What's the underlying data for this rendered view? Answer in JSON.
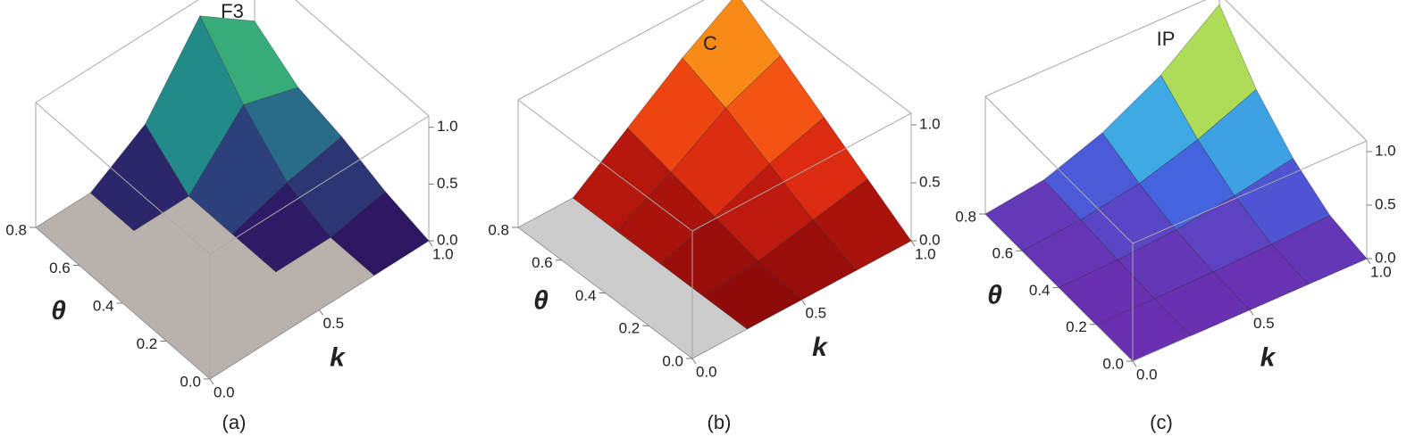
{
  "chart_data": [
    {
      "type": "surface",
      "title": "F3",
      "caption": "(a)",
      "xlabel": "k",
      "ylabel": "θ",
      "x": [
        0,
        0.25,
        0.5,
        0.75,
        1.0
      ],
      "y": [
        0,
        0.2,
        0.4,
        0.6,
        0.8
      ],
      "z": [
        [
          0,
          0,
          0,
          0,
          0
        ],
        [
          0,
          0,
          0,
          0,
          0.1
        ],
        [
          0,
          0,
          0,
          0.15,
          0.25
        ],
        [
          0,
          0,
          0,
          0.5,
          0.35
        ],
        [
          0,
          0,
          0.3,
          0.95,
          0.6
        ]
      ],
      "xlim": [
        0,
        1
      ],
      "ylim": [
        0,
        0.8
      ],
      "zlim": [
        0,
        1.1
      ],
      "xticks": [
        {
          "value": 0,
          "label": "0.0"
        },
        0.5,
        {
          "value": 1,
          "label": "1.0"
        }
      ],
      "yticks": [
        {
          "value": 0,
          "label": "0.0"
        },
        0.2,
        0.4,
        0.6,
        0.8
      ],
      "zticks": [
        {
          "value": 0,
          "label": "0.0"
        },
        0.5,
        {
          "value": 1,
          "label": "1.0"
        }
      ],
      "colors": [
        "#2d0f5e",
        "#2b5c8a",
        "#1f9a8a",
        "#5cc863",
        "#d9e043"
      ],
      "floor_color": "#b9b1ab"
    },
    {
      "type": "surface",
      "title": "C",
      "caption": "(b)",
      "xlabel": "k",
      "ylabel": "θ",
      "x": [
        0,
        0.25,
        0.5,
        0.75,
        1.0
      ],
      "y": [
        0,
        0.2,
        0.4,
        0.6,
        0.8
      ],
      "z": [
        [
          0,
          0,
          0,
          0,
          0
        ],
        [
          0,
          0,
          0.05,
          0.15,
          0.25
        ],
        [
          0,
          0,
          0.15,
          0.35,
          0.5
        ],
        [
          0,
          0,
          0.25,
          0.55,
          0.75
        ],
        [
          0,
          0,
          0.35,
          0.7,
          1.0
        ]
      ],
      "xlim": [
        0,
        1
      ],
      "ylim": [
        0,
        0.8
      ],
      "zlim": [
        0,
        1.1
      ],
      "xticks": [
        {
          "value": 0,
          "label": "0.0"
        },
        0.5,
        {
          "value": 1,
          "label": "1.0"
        }
      ],
      "yticks": [
        {
          "value": 0,
          "label": "0.0"
        },
        0.2,
        0.4,
        0.6,
        0.8
      ],
      "zticks": [
        {
          "value": 0,
          "label": "0.0"
        },
        0.5,
        {
          "value": 1,
          "label": "1.0"
        }
      ],
      "colors": [
        "#8a0a0a",
        "#d4200f",
        "#f24a12",
        "#f88a18",
        "#fcc42a"
      ],
      "floor_color": "#cccccc"
    },
    {
      "type": "surface",
      "title": "IP",
      "caption": "(c)",
      "xlabel": "k",
      "ylabel": "θ",
      "x": [
        0,
        0.25,
        0.5,
        0.75,
        1.0
      ],
      "y": [
        0,
        0.2,
        0.4,
        0.6,
        0.8
      ],
      "z": [
        [
          0,
          0,
          0,
          0,
          0
        ],
        [
          0,
          0,
          0.01,
          0.03,
          0.06
        ],
        [
          0,
          0.02,
          0.06,
          0.14,
          0.25
        ],
        [
          0,
          0.05,
          0.15,
          0.32,
          0.55
        ],
        [
          0,
          0.08,
          0.28,
          0.58,
          1.0
        ]
      ],
      "xlim": [
        0,
        1
      ],
      "ylim": [
        0,
        0.8
      ],
      "zlim": [
        0,
        1.1
      ],
      "xticks": [
        {
          "value": 0,
          "label": "0.0"
        },
        0.5,
        {
          "value": 1,
          "label": "1.0"
        }
      ],
      "yticks": [
        {
          "value": 0,
          "label": "0.0"
        },
        0.2,
        0.4,
        0.6,
        0.8
      ],
      "zticks": [
        {
          "value": 0,
          "label": "0.0"
        },
        0.5,
        {
          "value": 1,
          "label": "1.0"
        }
      ],
      "colors": [
        "#6a2fb0",
        "#3d6ee8",
        "#3fc7e0",
        "#a8e05a",
        "#f4b23a",
        "#d8281e"
      ],
      "floor_color": "#6a2fb0"
    }
  ]
}
